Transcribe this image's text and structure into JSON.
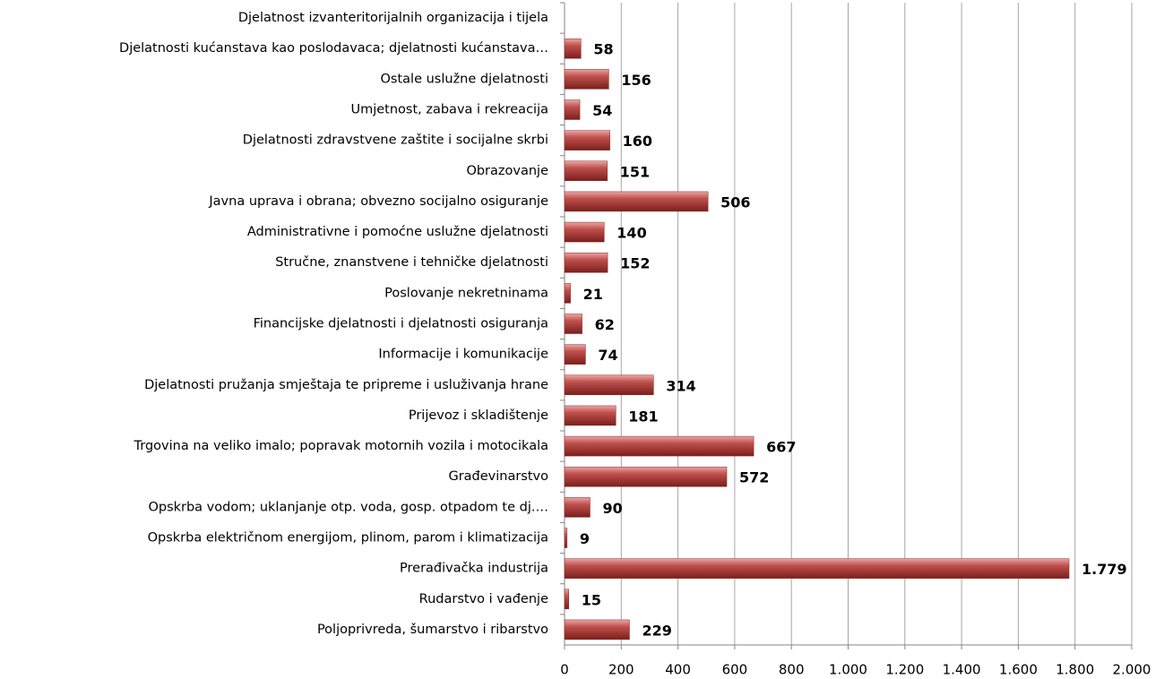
{
  "chart_data": {
    "type": "barh",
    "categories": [
      "Djelatnost izvanteritorijalnih organizacija i tijela",
      "Djelatnosti kućanstava kao poslodavaca; djelatnosti kućanstava…",
      "Ostale uslužne djelatnosti",
      "Umjetnost, zabava i rekreacija",
      "Djelatnosti zdravstvene zaštite i socijalne skrbi",
      "Obrazovanje",
      "Javna uprava i obrana; obvezno socijalno osiguranje",
      "Administrativne i pomoćne uslužne djelatnosti",
      "Stručne, znanstvene i tehničke djelatnosti",
      "Poslovanje nekretninama",
      "Financijske djelatnosti i djelatnosti osiguranja",
      "Informacije i komunikacije",
      "Djelatnosti pružanja smještaja te pripreme i usluživanja hrane",
      "Prijevoz i skladištenje",
      "Trgovina na veliko imalo; popravak motornih vozila i motocikala",
      "Građevinarstvo",
      "Opskrba vodom; uklanjanje otp. voda, gosp. otpadom te dj.…",
      "Opskrba električnom energijom, plinom, parom i klimatizacija",
      "Prerađivačka industrija",
      "Rudarstvo i vađenje",
      "Poljoprivreda, šumarstvo i ribarstvo"
    ],
    "values": [
      null,
      58,
      156,
      54,
      160,
      151,
      506,
      140,
      152,
      21,
      62,
      74,
      314,
      181,
      667,
      572,
      90,
      9,
      1779,
      15,
      229
    ],
    "value_labels": [
      null,
      "58",
      "156",
      "54",
      "160",
      "151",
      "506",
      "140",
      "152",
      "21",
      "62",
      "74",
      "314",
      "181",
      "667",
      "572",
      "90",
      "9",
      "1.779",
      "15",
      "229"
    ],
    "color": "#c0504d",
    "xlim": [
      0,
      2000
    ],
    "xticks": [
      0,
      200,
      400,
      600,
      800,
      {
        "value": 1000,
        "label": "1.000"
      },
      {
        "value": 1200,
        "label": "1.200"
      },
      {
        "value": 1400,
        "label": "1.400"
      },
      {
        "value": 1600,
        "label": "1.600"
      },
      {
        "value": 1800,
        "label": "1.800"
      },
      {
        "value": 2000,
        "label": "2.000"
      }
    ],
    "grid": true
  }
}
